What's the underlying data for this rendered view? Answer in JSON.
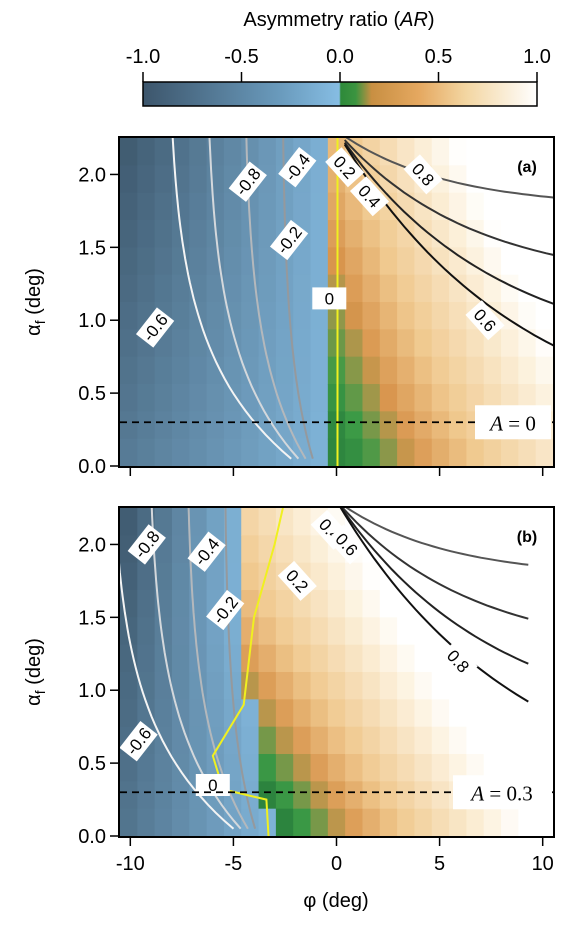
{
  "colorbar": {
    "title_main": "Asymmetry ratio (",
    "title_var": "AR",
    "title_end": ")",
    "range": [
      -1.0,
      1.0
    ],
    "ticks": [
      "-1.0",
      "-0.5",
      "0.0",
      "0.5",
      "1.0"
    ],
    "tick_values": [
      -1.0,
      -0.5,
      0.0,
      0.5,
      1.0
    ]
  },
  "colors": {
    "dark_blue": "#3d566c",
    "light_blue": "#7fb5dc",
    "green": "#2e8a3a",
    "orange": "#dd9850",
    "cream": "#f6dfb3",
    "white": "#ffffff",
    "zero_contour": "#f0f020",
    "dashed": "#000000"
  },
  "x_axis": {
    "label": "φ (deg)",
    "ticks": [
      "-10",
      "-5",
      "0",
      "5",
      "10"
    ],
    "tick_values": [
      -10,
      -5,
      0,
      5,
      10
    ],
    "range": [
      -10.5,
      10.5
    ]
  },
  "y_axis": {
    "label_main": "α",
    "label_sub": "f",
    "label_end": " (deg)",
    "ticks": [
      "0.0",
      "0.5",
      "1.0",
      "1.5",
      "2.0"
    ],
    "tick_values": [
      0.0,
      0.5,
      1.0,
      1.5,
      2.0
    ],
    "range": [
      0.0,
      2.25
    ]
  },
  "chart_data": [
    {
      "type": "heatmap",
      "panel_label": "(a)",
      "xlabel": "",
      "ylabel": "αf (deg)",
      "xlim": [
        -10.5,
        10.5
      ],
      "ylim": [
        0.0,
        2.25
      ],
      "dashed_line_y": 0.3,
      "annotation": {
        "var": "A",
        "text": " = 0"
      },
      "contour_labels": [
        "-0.8",
        "-0.6",
        "-0.4",
        "-0.2",
        "0",
        "0.2",
        "0.4",
        "0.6",
        "0.8"
      ],
      "contour_levels": [
        -0.8,
        -0.6,
        -0.4,
        -0.2,
        0,
        0.2,
        0.4,
        0.6,
        0.8
      ]
    },
    {
      "type": "heatmap",
      "panel_label": "(b)",
      "xlabel": "φ (deg)",
      "ylabel": "αf (deg)",
      "xlim": [
        -10.5,
        10.5
      ],
      "ylim": [
        0.0,
        2.25
      ],
      "dashed_line_y": 0.3,
      "annotation": {
        "var": "A",
        "text": " = 0.3"
      },
      "contour_labels": [
        "-0.8",
        "-0.6",
        "-0.4",
        "-0.2",
        "0",
        "0.2",
        "0.4",
        "0.6",
        "0.8"
      ],
      "contour_levels": [
        -0.8,
        -0.6,
        -0.4,
        -0.2,
        0,
        0.2,
        0.4,
        0.6,
        0.8
      ]
    }
  ]
}
